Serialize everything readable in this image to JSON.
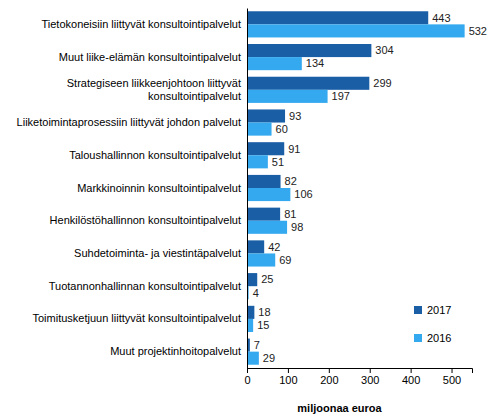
{
  "chart_data": {
    "type": "bar",
    "orientation": "horizontal",
    "categories": [
      "Tietokoneisiin liittyvät konsultointipalvelut",
      "Muut liike-elämän konsultointipalvelut",
      "Strategiseen liikkeenjohtoon liittyvät konsultointipalvelut",
      "Liiketoimintaprosessiin liittyvät johdon palvelut",
      "Taloushallinnon konsultointipalvelut",
      "Markkinoinnin konsultointipalvelut",
      "Henkilöstöhallinnon konsultointipalvelut",
      "Suhdetoiminta- ja viestintäpalvelut",
      "Tuotannonhallinnan konsultointipalvelut",
      "Toimitusketjuun liittyvät konsultointipalvelut",
      "Muut projektinhoitopalvelut"
    ],
    "series": [
      {
        "name": "2017",
        "color": "#1a5ea6",
        "values": [
          443,
          304,
          299,
          93,
          91,
          82,
          81,
          42,
          25,
          18,
          7
        ]
      },
      {
        "name": "2016",
        "color": "#35a9ef",
        "values": [
          532,
          134,
          197,
          60,
          51,
          106,
          98,
          69,
          4,
          15,
          29
        ]
      }
    ],
    "xlabel": "miljoonaa euroa",
    "xlim": [
      0,
      550
    ],
    "xticks": [
      0,
      100,
      200,
      300,
      400,
      500
    ],
    "data_labels": true,
    "legend": "lower right",
    "grid": false
  }
}
